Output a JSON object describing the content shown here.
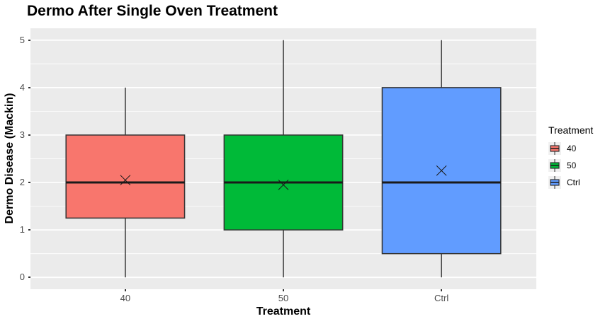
{
  "chart_data": {
    "type": "boxplot",
    "title": "Dermo After Single Oven Treatment",
    "xlabel": "Treatment",
    "ylabel": "Dermo Disease (Mackin)",
    "legend_title": "Treatment",
    "legend_position": "right",
    "categories": [
      "40",
      "50",
      "Ctrl"
    ],
    "yticks": [
      "0",
      "1",
      "2",
      "3",
      "4",
      "5"
    ],
    "ylim": [
      0,
      5
    ],
    "grid": true,
    "mean_marker": "x",
    "colors": {
      "panel_background": "#EBEBEB",
      "gridline": "#FFFFFF",
      "box_border": "#333333",
      "tick_label": "#4D4D4D",
      "legend_key_background": "#F0F0F0"
    },
    "series": [
      {
        "name": "40",
        "color": "#F8766D",
        "whisker_min": 0,
        "q1": 1.25,
        "median": 2,
        "q3": 3,
        "whisker_max": 4,
        "mean": 2.05
      },
      {
        "name": "50",
        "color": "#00BA38",
        "whisker_min": 0,
        "q1": 1.0,
        "median": 2,
        "q3": 3,
        "whisker_max": 5,
        "mean": 1.95
      },
      {
        "name": "Ctrl",
        "color": "#619CFF",
        "whisker_min": 0,
        "q1": 0.5,
        "median": 2,
        "q3": 4,
        "whisker_max": 5,
        "mean": 2.25
      }
    ]
  }
}
